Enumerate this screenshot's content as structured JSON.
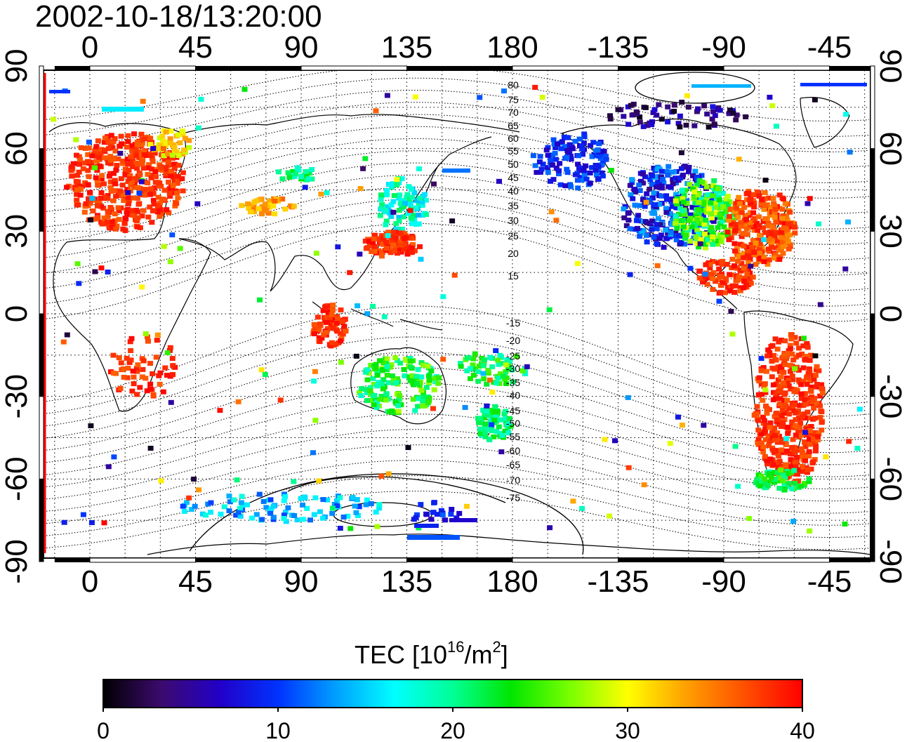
{
  "title": "2002-10-18/13:20:00",
  "map": {
    "lon_ticks": [
      "0",
      "45",
      "90",
      "135",
      "180",
      "-135",
      "-90",
      "-45"
    ],
    "lat_ticks": [
      "90",
      "60",
      "30",
      "0",
      "-30",
      "-60",
      "-90"
    ],
    "contour_labels_north": [
      "80",
      "75",
      "70",
      "65",
      "60",
      "55",
      "50",
      "45",
      "40",
      "35",
      "30",
      "25",
      "20",
      "15"
    ],
    "contour_labels_south": [
      "-15",
      "-20",
      "-25",
      "-30",
      "-35",
      "-40",
      "-45",
      "-50",
      "-55",
      "-60",
      "-65",
      "-70",
      "-75"
    ]
  },
  "colorbar": {
    "label_main": "TEC  [10",
    "label_sup1": "16",
    "label_mid": "/m",
    "label_sup2": "2",
    "label_end": "]",
    "ticks": [
      "0",
      "10",
      "20",
      "30",
      "40"
    ],
    "range": [
      0,
      40
    ],
    "colors": [
      "#000000",
      "#3c0a6e",
      "#2200c8",
      "#0032ff",
      "#00a0ff",
      "#00ffff",
      "#00ff96",
      "#00e600",
      "#78ff00",
      "#ffff00",
      "#ffa000",
      "#ff5000",
      "#ff0000"
    ]
  }
}
